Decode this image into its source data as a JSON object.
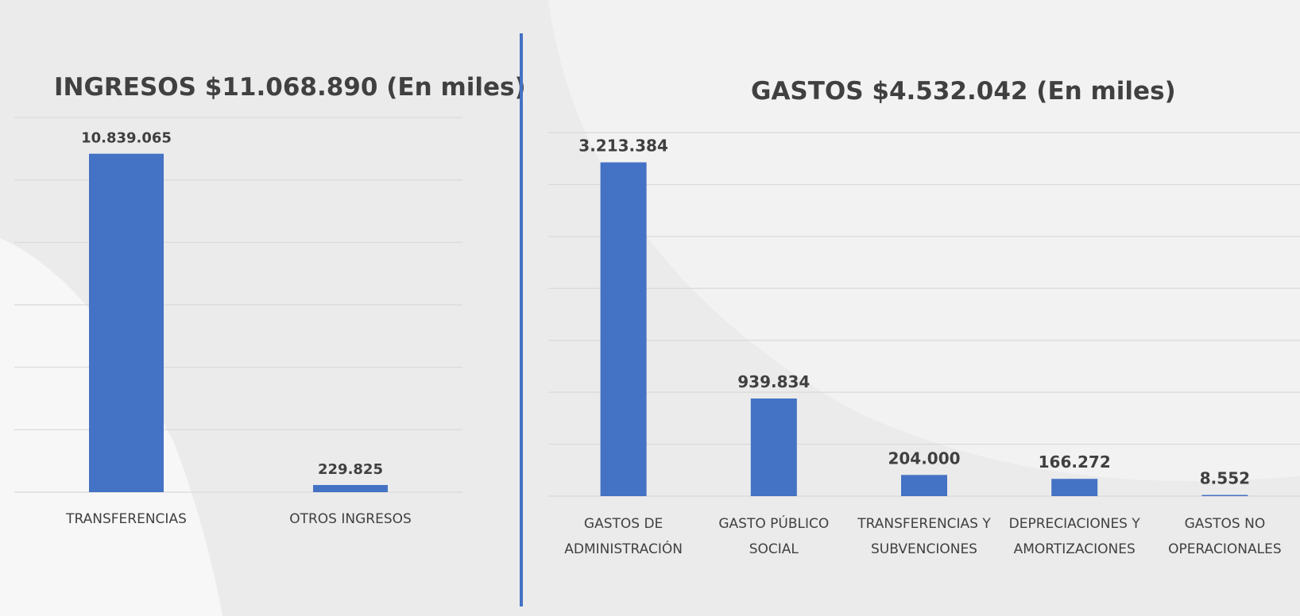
{
  "colors": {
    "bar": "#4472c4",
    "grid": "#d9d9d9",
    "text": "#404040",
    "divider": "#4472c4"
  },
  "chart_data": [
    {
      "type": "bar",
      "title": "INGRESOS $11.068.890 (En miles)",
      "categories": [
        [
          "TRANSFERENCIAS"
        ],
        [
          "OTROS INGRESOS"
        ]
      ],
      "values": [
        10839065,
        229825
      ],
      "data_labels": [
        "10.839.065",
        "229.825"
      ],
      "ylim": [
        0,
        12000000
      ],
      "grid": true,
      "xlabel": "",
      "ylabel": ""
    },
    {
      "type": "bar",
      "title": "GASTOS $4.532.042 (En miles)",
      "categories": [
        [
          "GASTOS DE",
          "ADMINISTRACIÓN"
        ],
        [
          "GASTO PÚBLICO",
          "SOCIAL"
        ],
        [
          "TRANSFERENCIAS Y",
          "SUBVENCIONES"
        ],
        [
          "DEPRECIACIONES Y",
          "AMORTIZACIONES"
        ],
        [
          "GASTOS NO",
          "OPERACIONALES"
        ]
      ],
      "values": [
        3213384,
        939834,
        204000,
        166272,
        8552
      ],
      "data_labels": [
        "3.213.384",
        "939.834",
        "204.000",
        "166.272",
        "8.552"
      ],
      "ylim": [
        0,
        3500000
      ],
      "grid": true,
      "xlabel": "",
      "ylabel": ""
    }
  ]
}
